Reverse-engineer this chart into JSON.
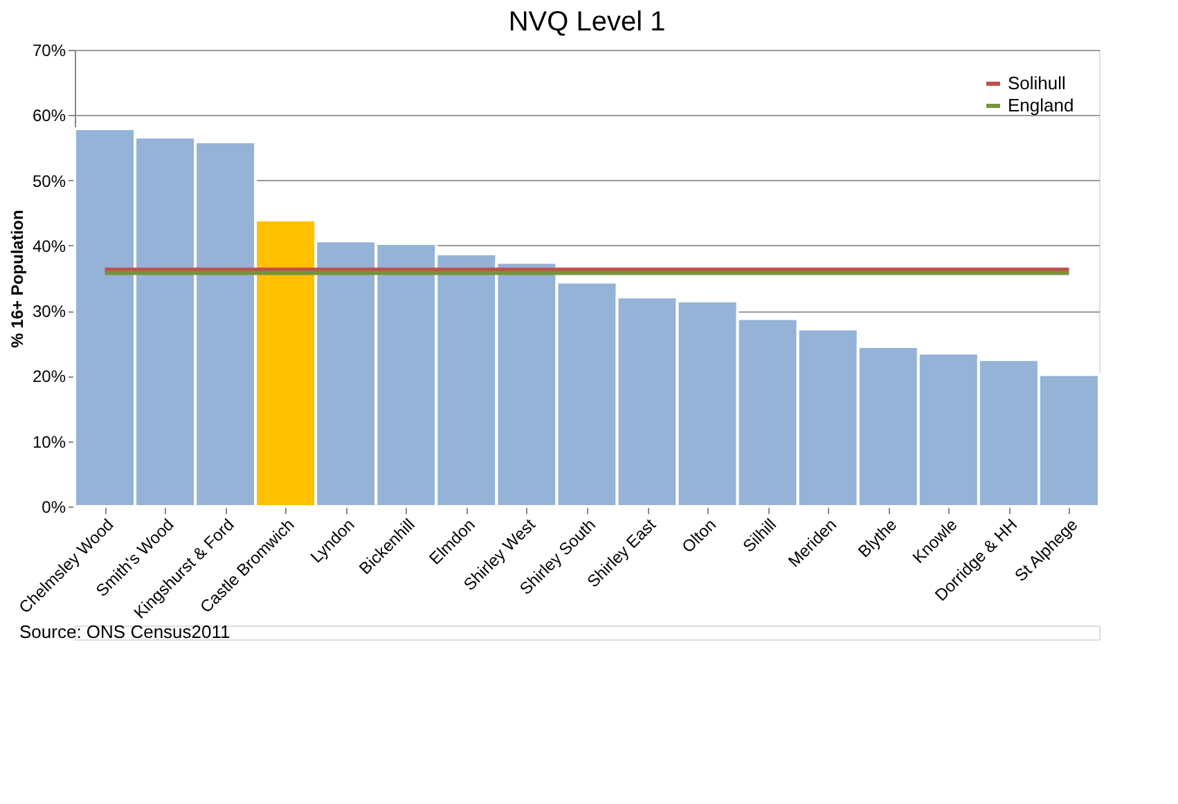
{
  "chart_data": {
    "type": "bar",
    "title": "NVQ Level 1",
    "ylabel": "% 16+ Population",
    "categories": [
      "Chelmsley Wood",
      "Smith's Wood",
      "Kingshurst & Ford",
      "Castle Bromwich",
      "Lyndon",
      "Bickenhill",
      "Elmdon",
      "Shirley West",
      "Shirley South",
      "Shirley East",
      "Olton",
      "Silhill",
      "Meriden",
      "Blythe",
      "Knowle",
      "Dorridge & HH",
      "St Alphege"
    ],
    "series": [
      {
        "values": [
          57.9,
          56.6,
          55.9,
          43.9,
          40.7,
          40.3,
          38.7,
          37.4,
          34.4,
          32.1,
          31.5,
          28.8,
          27.2,
          24.5,
          23.5,
          22.5,
          20.2
        ],
        "colors": [
          "#95b3d7",
          "#95b3d7",
          "#95b3d7",
          "#ffc000",
          "#95b3d7",
          "#95b3d7",
          "#95b3d7",
          "#95b3d7",
          "#95b3d7",
          "#95b3d7",
          "#95b3d7",
          "#95b3d7",
          "#95b3d7",
          "#95b3d7",
          "#95b3d7",
          "#95b3d7",
          "#95b3d7"
        ]
      },
      {
        "type": "line",
        "name": "Solihull",
        "color": "#c0504d",
        "values": [
          36.3,
          36.3,
          36.3,
          36.3,
          36.3,
          36.3,
          36.3,
          36.3,
          36.3,
          36.3,
          36.3,
          36.3,
          36.3,
          36.3,
          36.3,
          36.3,
          36.3
        ]
      },
      {
        "type": "line",
        "name": "England",
        "color": "#77933c",
        "values": [
          35.8,
          35.8,
          35.8,
          35.8,
          35.8,
          35.8,
          35.8,
          35.8,
          35.8,
          35.8,
          35.8,
          35.8,
          35.8,
          35.8,
          35.8,
          35.8,
          35.8
        ]
      }
    ],
    "ylim": [
      0,
      70
    ],
    "yticks": [
      {
        "value": 0,
        "label": "0%"
      },
      {
        "value": 10,
        "label": "10%"
      },
      {
        "value": 20,
        "label": "20%"
      },
      {
        "value": 30,
        "label": "30%"
      },
      {
        "value": 40,
        "label": "40%"
      },
      {
        "value": 50,
        "label": "50%"
      },
      {
        "value": 60,
        "label": "60%"
      },
      {
        "value": 70,
        "label": "70%"
      }
    ],
    "grid": "y",
    "legend": "top right",
    "annotations": [
      "Source: ONS Census2011"
    ]
  }
}
